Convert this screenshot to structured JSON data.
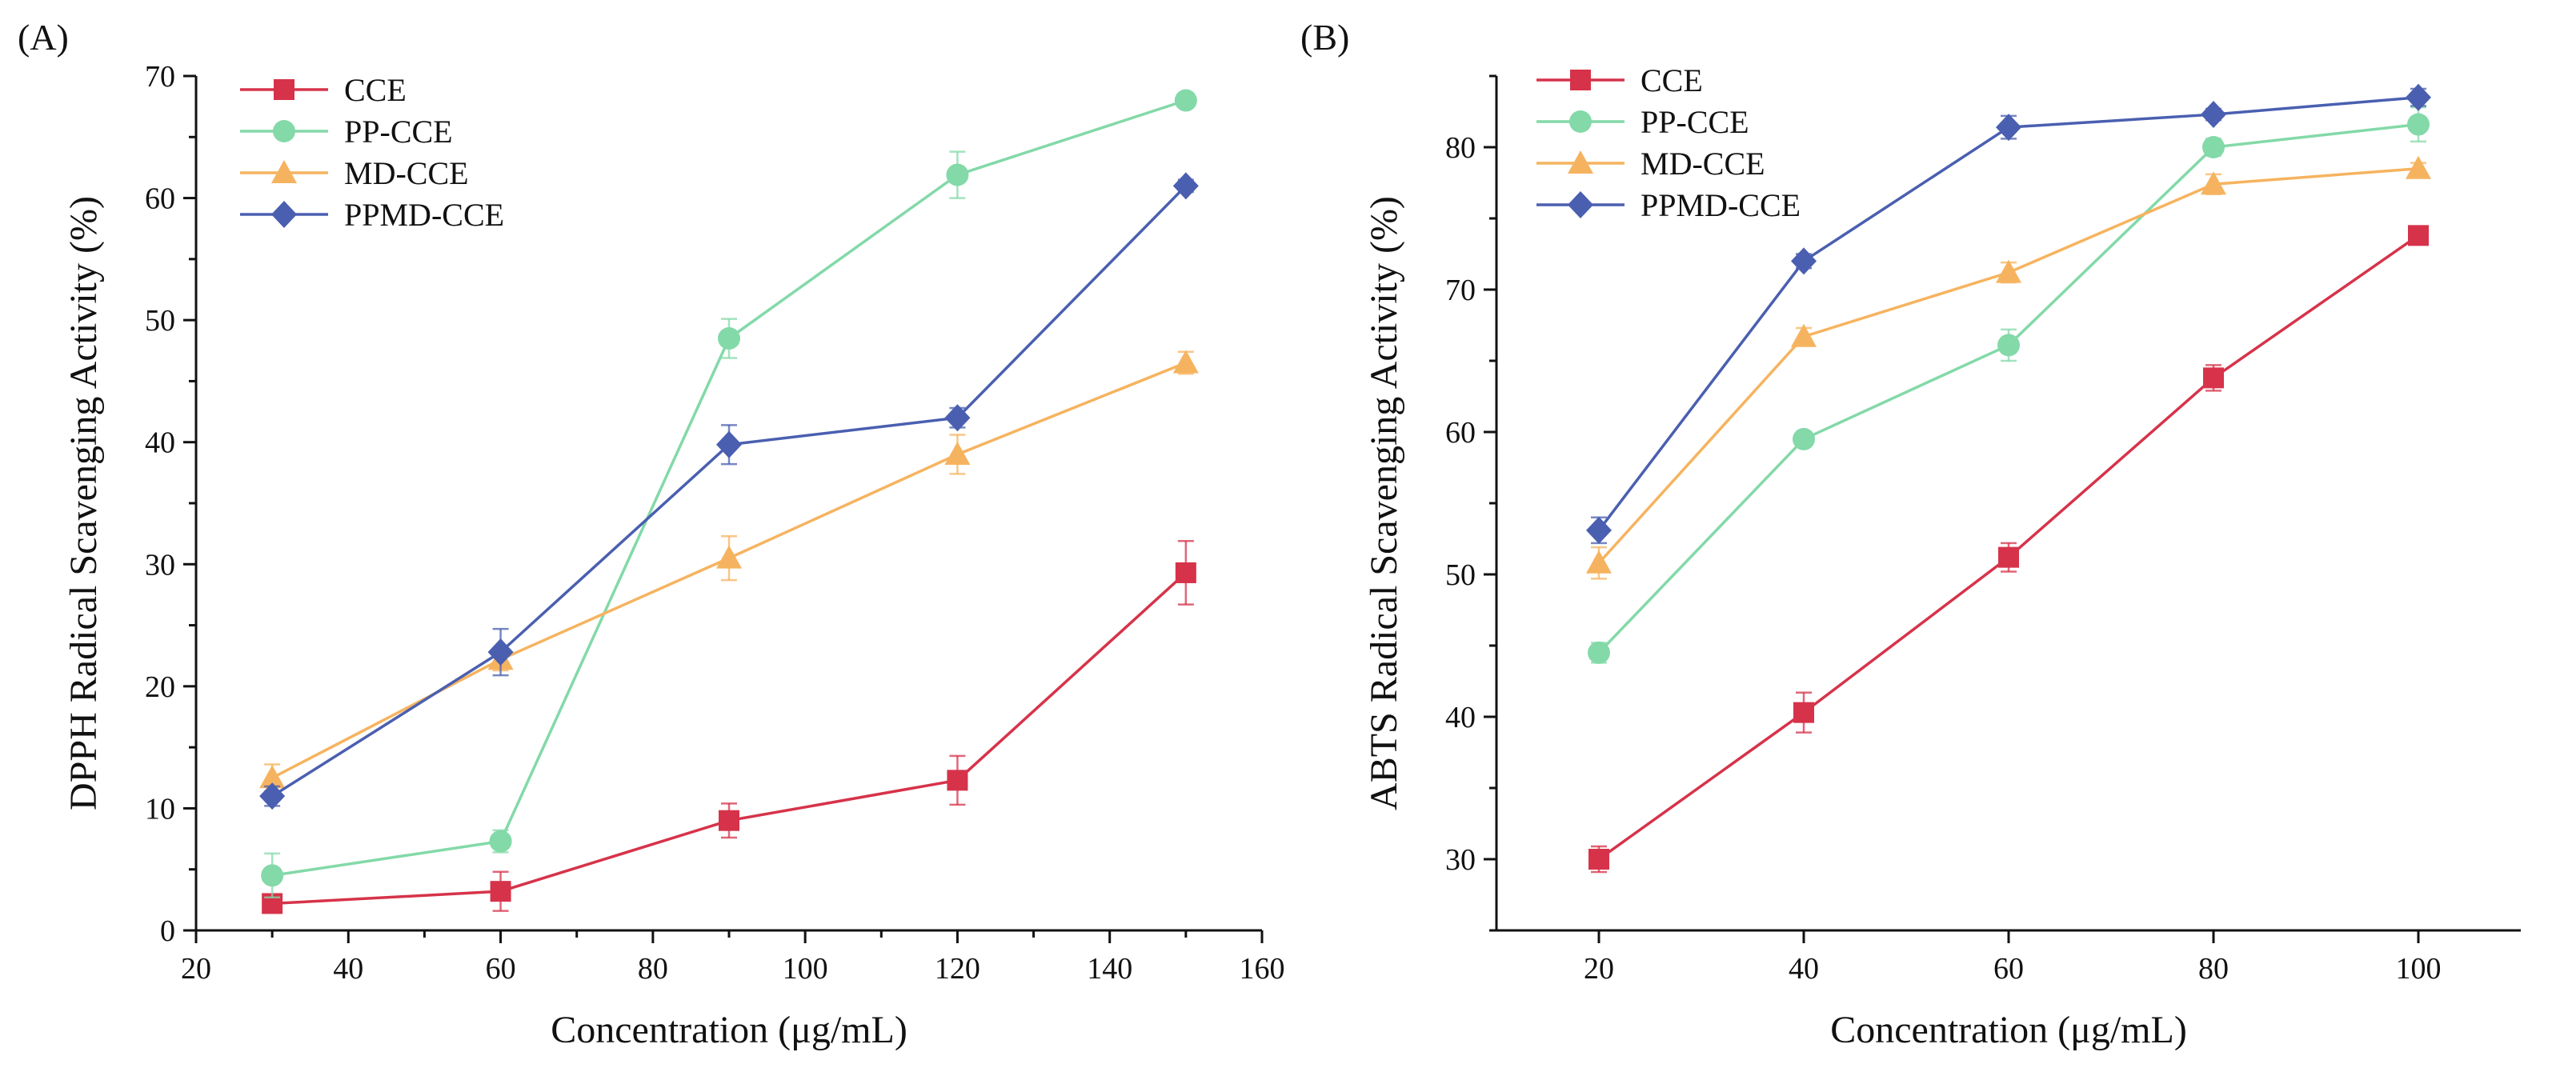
{
  "chart_data": [
    {
      "type": "line",
      "panel_label": "(A)",
      "xlabel": "Concentration (μg/mL)",
      "ylabel": "DPPH Radical Scavenging Activity (%)",
      "xlim": [
        20,
        160
      ],
      "ylim": [
        0,
        70
      ],
      "xticks": [
        20,
        40,
        60,
        80,
        100,
        120,
        140,
        160
      ],
      "yticks": [
        0,
        10,
        20,
        30,
        40,
        50,
        60,
        70
      ],
      "x": [
        30,
        60,
        90,
        120,
        150
      ],
      "legend_position": "top-left",
      "series": [
        {
          "name": "CCE",
          "color": "#d6334a",
          "marker": "square",
          "values": [
            2.2,
            3.2,
            9.0,
            12.3,
            29.3
          ],
          "errors": [
            0.5,
            1.6,
            1.4,
            2.0,
            2.6
          ]
        },
        {
          "name": "PP-CCE",
          "color": "#83d9a8",
          "marker": "circle",
          "values": [
            4.5,
            7.3,
            48.5,
            61.9,
            68.0
          ],
          "errors": [
            1.8,
            0.9,
            1.6,
            1.9,
            0.4
          ]
        },
        {
          "name": "MD-CCE",
          "color": "#f6b35f",
          "marker": "triangle",
          "values": [
            12.5,
            22.2,
            30.5,
            39.0,
            46.5
          ],
          "errors": [
            1.1,
            0.9,
            1.8,
            1.6,
            0.9
          ]
        },
        {
          "name": "PPMD-CCE",
          "color": "#4a5fb0",
          "marker": "diamond",
          "values": [
            11.0,
            22.8,
            39.8,
            42.0,
            61.0
          ],
          "errors": [
            0.8,
            1.9,
            1.6,
            0.8,
            0.5
          ]
        }
      ]
    },
    {
      "type": "line",
      "panel_label": "(B)",
      "xlabel": "Concentration (μg/mL)",
      "ylabel": "ABTS Radical Scavenging Activity (%)",
      "xlim": [
        10,
        110
      ],
      "ylim": [
        25,
        85
      ],
      "xticks": [
        20,
        40,
        60,
        80,
        100
      ],
      "yticks": [
        30,
        40,
        50,
        60,
        70,
        80
      ],
      "x": [
        20,
        40,
        60,
        80,
        100
      ],
      "legend_position": "top-left",
      "series": [
        {
          "name": "CCE",
          "color": "#d6334a",
          "marker": "square",
          "values": [
            30.0,
            40.3,
            51.2,
            63.8,
            73.8
          ],
          "errors": [
            0.9,
            1.4,
            1.0,
            0.9,
            0.3
          ]
        },
        {
          "name": "PP-CCE",
          "color": "#83d9a8",
          "marker": "circle",
          "values": [
            44.5,
            59.5,
            66.1,
            80.0,
            81.6
          ],
          "errors": [
            0.7,
            0.5,
            1.1,
            0.6,
            1.2
          ]
        },
        {
          "name": "MD-CCE",
          "color": "#f6b35f",
          "marker": "triangle",
          "values": [
            50.8,
            66.7,
            71.2,
            77.4,
            78.5
          ],
          "errors": [
            1.1,
            0.6,
            0.7,
            0.7,
            0.4
          ]
        },
        {
          "name": "PPMD-CCE",
          "color": "#4a5fb0",
          "marker": "diamond",
          "values": [
            53.1,
            72.0,
            81.4,
            82.3,
            83.5
          ],
          "errors": [
            0.9,
            0.5,
            0.8,
            0.4,
            0.6
          ]
        }
      ]
    }
  ]
}
